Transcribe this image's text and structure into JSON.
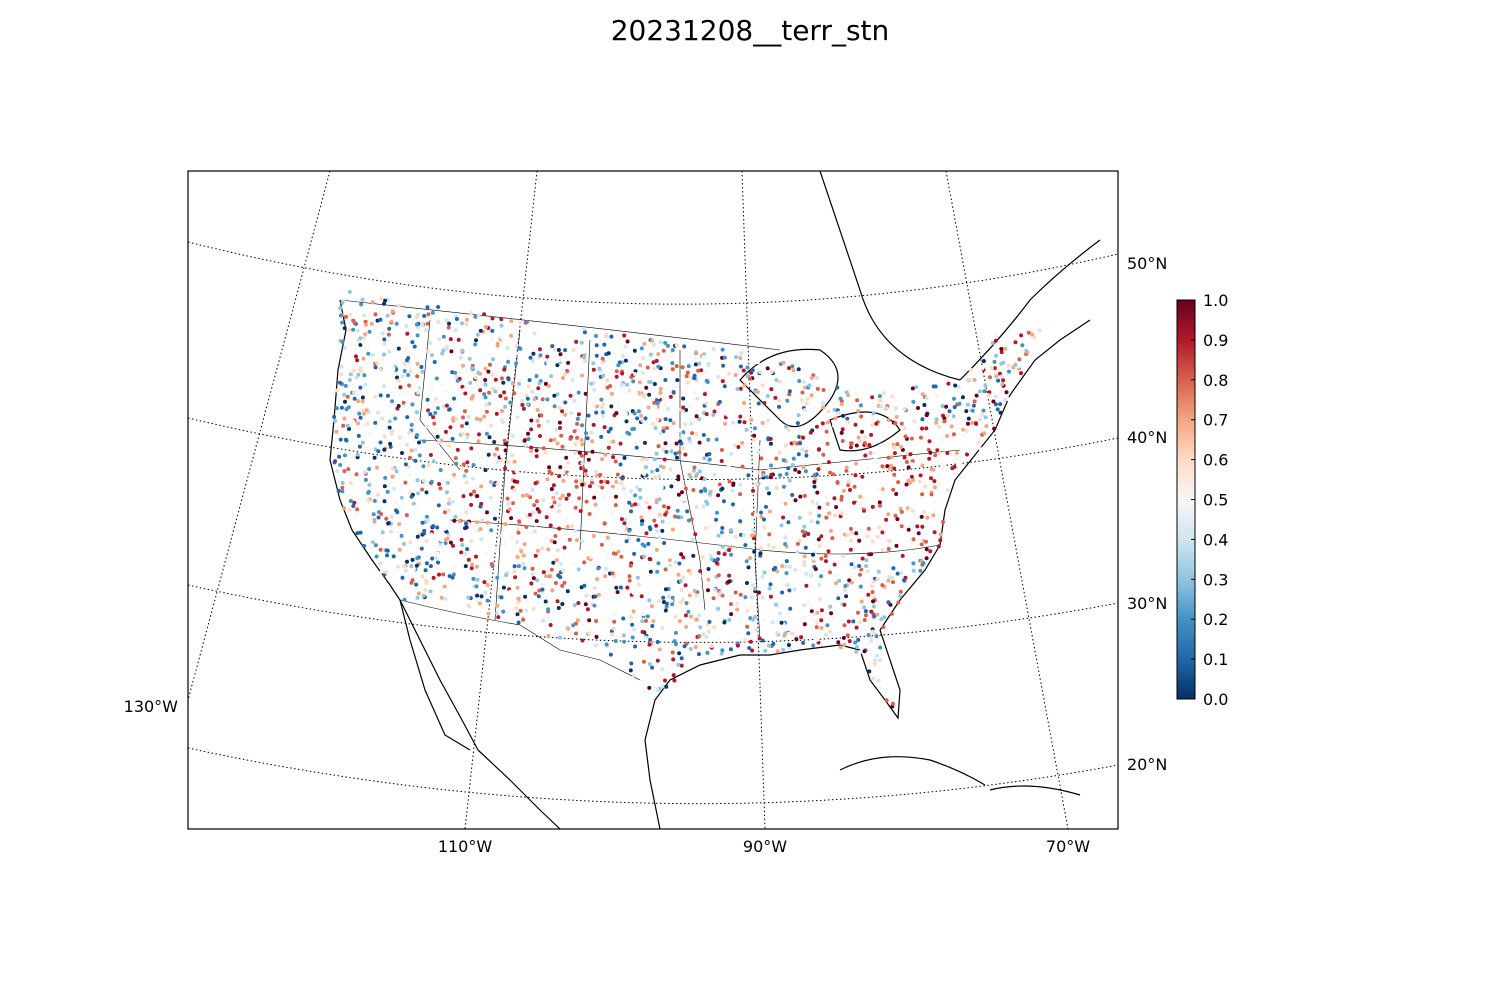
{
  "title": "20231208__terr_stn",
  "map": {
    "lon_labels": [
      "110°W",
      "90°W",
      "70°W"
    ],
    "lon_label_left": "130°W",
    "lat_labels": [
      "50°N",
      "40°N",
      "30°N",
      "20°N"
    ],
    "graticule_style": "dotted",
    "projection": "conic (Lambert)"
  },
  "colorbar": {
    "colormap": "RdBu_r",
    "colors": [
      "#053061",
      "#2166ac",
      "#4393c3",
      "#92c5de",
      "#d1e5f0",
      "#f7f7f7",
      "#fddbc7",
      "#f4a582",
      "#d6604d",
      "#b2182b",
      "#67001f"
    ],
    "ticks": [
      "0.0",
      "0.1",
      "0.2",
      "0.3",
      "0.4",
      "0.5",
      "0.6",
      "0.7",
      "0.8",
      "0.9",
      "1.0"
    ],
    "vmin": 0.0,
    "vmax": 1.0
  },
  "stations": {
    "description_count_visible": "thousands of station markers across CONUS",
    "value_range": [
      0.0,
      1.0
    ]
  }
}
